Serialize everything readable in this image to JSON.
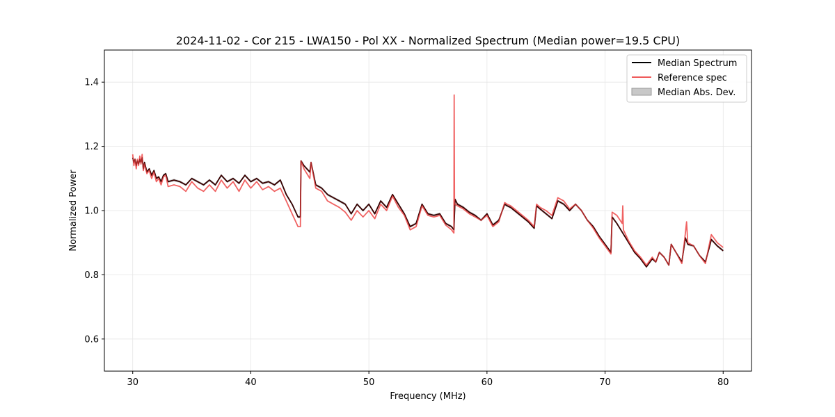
{
  "chart_data": {
    "type": "line",
    "title": "2024-11-02 - Cor 215 - LWA150 - Pol XX - Normalized Spectrum (Median power=19.5 CPU)",
    "xlabel": "Frequency (MHz)",
    "ylabel": "Normalized Power",
    "xlim": [
      27.6,
      82.4
    ],
    "ylim": [
      0.5,
      1.5
    ],
    "xticks": [
      30,
      40,
      50,
      60,
      70,
      80
    ],
    "yticks": [
      0.6,
      0.8,
      1.0,
      1.2,
      1.4
    ],
    "grid": true,
    "legend_position": "top-right",
    "legend": [
      "Median Spectrum",
      "Reference spec",
      "Median Abs. Dev."
    ],
    "colors": {
      "median": "#000000",
      "reference": "#ef5a5a",
      "mad": "#b0b0b0"
    },
    "series": [
      {
        "name": "Median Spectrum",
        "x": [
          30.0,
          30.1,
          30.2,
          30.3,
          30.4,
          30.5,
          30.6,
          30.7,
          30.8,
          30.9,
          31.0,
          31.2,
          31.4,
          31.6,
          31.8,
          32.0,
          32.2,
          32.4,
          32.6,
          32.8,
          33.0,
          33.5,
          34.0,
          34.5,
          35.0,
          35.5,
          36.0,
          36.5,
          37.0,
          37.5,
          38.0,
          38.5,
          39.0,
          39.5,
          40.0,
          40.5,
          41.0,
          41.5,
          42.0,
          42.5,
          43.0,
          43.5,
          44.0,
          44.2,
          44.25,
          44.5,
          45.0,
          45.1,
          45.5,
          46.0,
          46.5,
          47.0,
          47.5,
          48.0,
          48.5,
          49.0,
          49.5,
          50.0,
          50.5,
          51.0,
          51.5,
          52.0,
          52.5,
          53.0,
          53.5,
          54.0,
          54.5,
          55.0,
          55.5,
          56.0,
          56.5,
          57.0,
          57.2,
          57.3,
          57.5,
          58.0,
          58.5,
          59.0,
          59.5,
          60.0,
          60.5,
          61.0,
          61.5,
          61.7,
          62.0,
          62.5,
          63.0,
          63.5,
          64.0,
          64.2,
          64.5,
          65.0,
          65.5,
          66.0,
          66.5,
          67.0,
          67.5,
          68.0,
          68.5,
          69.0,
          69.5,
          70.0,
          70.5,
          70.6,
          71.0,
          71.5,
          72.0,
          72.5,
          73.0,
          73.5,
          74.0,
          74.3,
          74.6,
          75.0,
          75.4,
          75.6,
          76.0,
          76.5,
          76.8,
          77.0,
          77.5,
          78.0,
          78.5,
          79.0,
          79.5,
          80.0
        ],
        "y": [
          1.165,
          1.15,
          1.16,
          1.14,
          1.155,
          1.145,
          1.16,
          1.15,
          1.165,
          1.13,
          1.15,
          1.12,
          1.13,
          1.11,
          1.125,
          1.1,
          1.105,
          1.09,
          1.11,
          1.115,
          1.09,
          1.095,
          1.09,
          1.08,
          1.1,
          1.09,
          1.08,
          1.095,
          1.08,
          1.11,
          1.09,
          1.1,
          1.085,
          1.11,
          1.09,
          1.1,
          1.085,
          1.09,
          1.08,
          1.095,
          1.05,
          1.02,
          0.98,
          0.98,
          1.155,
          1.14,
          1.12,
          1.15,
          1.08,
          1.07,
          1.05,
          1.04,
          1.03,
          1.02,
          0.99,
          1.02,
          1.0,
          1.02,
          0.99,
          1.03,
          1.01,
          1.05,
          1.02,
          0.99,
          0.95,
          0.96,
          1.02,
          0.99,
          0.985,
          0.99,
          0.96,
          0.95,
          0.94,
          1.035,
          1.02,
          1.01,
          0.995,
          0.985,
          0.97,
          0.99,
          0.955,
          0.97,
          1.02,
          1.015,
          1.01,
          0.995,
          0.98,
          0.965,
          0.945,
          1.015,
          1.005,
          0.99,
          0.975,
          1.03,
          1.02,
          1.0,
          1.02,
          1.0,
          0.97,
          0.95,
          0.92,
          0.895,
          0.87,
          0.98,
          0.96,
          0.93,
          0.9,
          0.87,
          0.85,
          0.825,
          0.85,
          0.84,
          0.87,
          0.855,
          0.83,
          0.895,
          0.87,
          0.84,
          0.915,
          0.895,
          0.89,
          0.86,
          0.84,
          0.91,
          0.89,
          0.875
        ]
      },
      {
        "name": "Reference spec",
        "x": [
          30.0,
          30.1,
          30.2,
          30.3,
          30.4,
          30.5,
          30.6,
          30.7,
          30.8,
          30.9,
          31.0,
          31.2,
          31.4,
          31.6,
          31.8,
          32.0,
          32.2,
          32.4,
          32.6,
          32.8,
          33.0,
          33.5,
          34.0,
          34.5,
          35.0,
          35.5,
          36.0,
          36.5,
          37.0,
          37.5,
          38.0,
          38.5,
          39.0,
          39.5,
          40.0,
          40.5,
          41.0,
          41.5,
          42.0,
          42.5,
          43.0,
          43.5,
          44.0,
          44.2,
          44.25,
          44.5,
          45.0,
          45.1,
          45.5,
          46.0,
          46.5,
          47.0,
          47.5,
          48.0,
          48.5,
          49.0,
          49.5,
          50.0,
          50.5,
          51.0,
          51.5,
          52.0,
          52.5,
          53.0,
          53.5,
          54.0,
          54.5,
          55.0,
          55.5,
          56.0,
          56.5,
          57.0,
          57.2,
          57.22,
          57.25,
          57.3,
          57.5,
          58.0,
          58.5,
          59.0,
          59.5,
          60.0,
          60.5,
          61.0,
          61.5,
          61.7,
          62.0,
          62.5,
          63.0,
          63.5,
          64.0,
          64.2,
          64.5,
          65.0,
          65.5,
          66.0,
          66.5,
          67.0,
          67.5,
          68.0,
          68.5,
          69.0,
          69.5,
          70.0,
          70.5,
          70.6,
          71.0,
          71.45,
          71.5,
          71.55,
          72.0,
          72.5,
          73.0,
          73.5,
          74.0,
          74.3,
          74.6,
          75.0,
          75.4,
          75.6,
          76.0,
          76.5,
          76.8,
          76.9,
          77.0,
          77.5,
          78.0,
          78.5,
          79.0,
          79.5,
          80.0
        ],
        "y": [
          1.175,
          1.14,
          1.16,
          1.13,
          1.16,
          1.14,
          1.17,
          1.145,
          1.175,
          1.125,
          1.145,
          1.115,
          1.125,
          1.1,
          1.12,
          1.09,
          1.1,
          1.08,
          1.105,
          1.11,
          1.075,
          1.08,
          1.075,
          1.06,
          1.09,
          1.07,
          1.06,
          1.08,
          1.06,
          1.095,
          1.07,
          1.09,
          1.06,
          1.095,
          1.07,
          1.09,
          1.065,
          1.075,
          1.06,
          1.07,
          1.03,
          0.99,
          0.95,
          0.95,
          1.155,
          1.13,
          1.1,
          1.15,
          1.07,
          1.06,
          1.03,
          1.02,
          1.01,
          0.995,
          0.97,
          1.0,
          0.98,
          1.0,
          0.975,
          1.02,
          1.0,
          1.045,
          1.01,
          0.985,
          0.94,
          0.95,
          1.015,
          0.985,
          0.98,
          0.985,
          0.955,
          0.94,
          0.93,
          1.36,
          1.025,
          1.02,
          1.015,
          1.005,
          0.99,
          0.98,
          0.97,
          0.985,
          0.95,
          0.965,
          1.025,
          1.02,
          1.015,
          1.0,
          0.985,
          0.97,
          0.95,
          1.02,
          1.01,
          1.0,
          0.985,
          1.04,
          1.03,
          1.005,
          1.02,
          1.0,
          0.97,
          0.945,
          0.915,
          0.89,
          0.865,
          0.995,
          0.985,
          0.96,
          1.015,
          0.94,
          0.905,
          0.875,
          0.855,
          0.83,
          0.855,
          0.84,
          0.87,
          0.855,
          0.83,
          0.895,
          0.87,
          0.835,
          0.93,
          0.965,
          0.9,
          0.89,
          0.86,
          0.835,
          0.925,
          0.9,
          0.885
        ]
      }
    ]
  }
}
